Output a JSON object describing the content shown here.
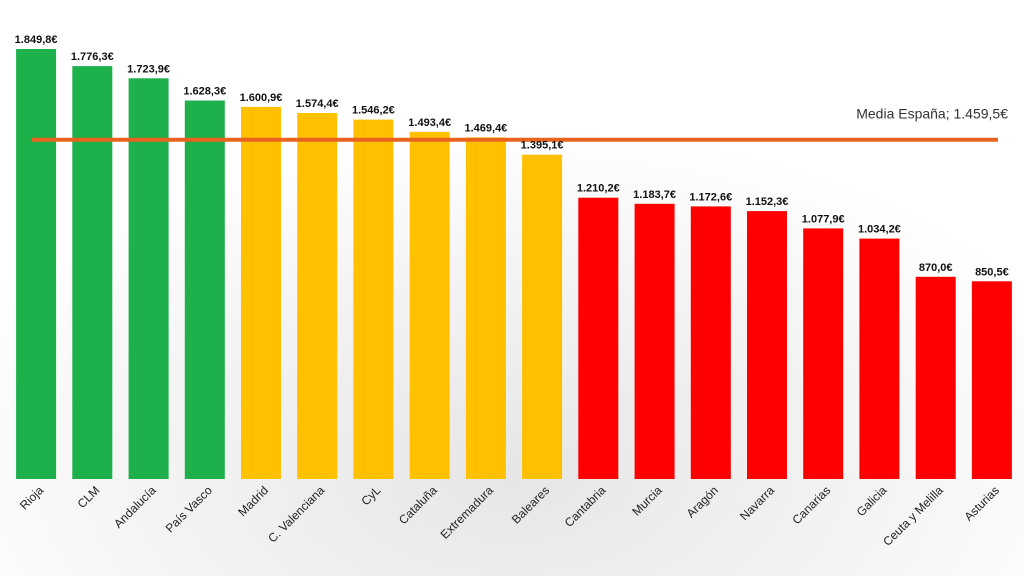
{
  "chart_data": {
    "type": "bar",
    "title": "",
    "xlabel": "",
    "ylabel": "",
    "categories": [
      "Rioja",
      "CLM",
      "Andalucía",
      "País Vasco",
      "Madrid",
      "C. Valenciana",
      "CyL",
      "Cataluña",
      "Extremadura",
      "Baleares",
      "Cantabria",
      "Murcia",
      "Aragón",
      "Navarra",
      "Canarias",
      "Galicia",
      "Ceuta y Melilla",
      "Asturias"
    ],
    "values": [
      1849.8,
      1776.3,
      1723.9,
      1628.3,
      1600.9,
      1574.4,
      1546.2,
      1493.4,
      1469.4,
      1395.1,
      1210.2,
      1183.7,
      1172.6,
      1152.3,
      1077.9,
      1034.2,
      870.0,
      850.5
    ],
    "value_labels": [
      "1.849,8€",
      "1.776,3€",
      "1.723,9€",
      "1.628,3€",
      "1.600,9€",
      "1.574,4€",
      "1.546,2€",
      "1.493,4€",
      "1.469,4€",
      "1.395,1€",
      "1.210,2€",
      "1.183,7€",
      "1.172,6€",
      "1.152,3€",
      "1.077,9€",
      "1.034,2€",
      "870,0€",
      "850,5€"
    ],
    "bar_colors": [
      "#1db04b",
      "#1db04b",
      "#1db04b",
      "#1db04b",
      "#ffc000",
      "#ffc000",
      "#ffc000",
      "#ffc000",
      "#ffc000",
      "#ffc000",
      "#ff0000",
      "#ff0000",
      "#ff0000",
      "#ff0000",
      "#ff0000",
      "#ff0000",
      "#ff0000",
      "#ff0000"
    ],
    "ylim": [
      0,
      1849.8
    ],
    "grid": false,
    "legend": "none",
    "reference_line": {
      "value": 1459.5,
      "label": "Media España; 1.459,5€",
      "color": "#e8641e"
    }
  }
}
